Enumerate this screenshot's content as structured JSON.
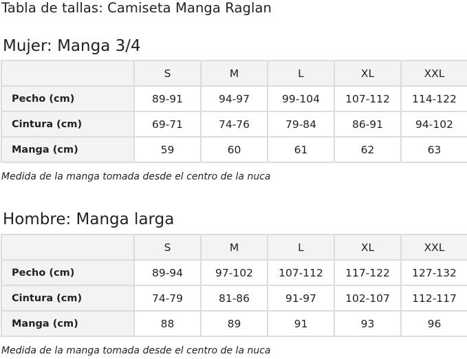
{
  "page_title": "Tabla de tallas: Camiseta Manga Raglan",
  "women": {
    "title": "Mujer: Manga 3/4",
    "sizes": [
      "S",
      "M",
      "L",
      "XL",
      "XXL"
    ],
    "rows": [
      {
        "label": "Pecho (cm)",
        "values": [
          "89-91",
          "94-97",
          "99-104",
          "107-112",
          "114-122"
        ]
      },
      {
        "label": "Cintura (cm)",
        "values": [
          "69-71",
          "74-76",
          "79-84",
          "86-91",
          "94-102"
        ]
      },
      {
        "label": "Manga (cm)",
        "values": [
          "59",
          "60",
          "61",
          "62",
          "63"
        ]
      }
    ],
    "note": "Medida de la manga tomada desde el centro de la nuca"
  },
  "men": {
    "title": "Hombre: Manga larga",
    "sizes": [
      "S",
      "M",
      "L",
      "XL",
      "XXL"
    ],
    "rows": [
      {
        "label": "Pecho (cm)",
        "values": [
          "89-94",
          "97-102",
          "107-112",
          "117-122",
          "127-132"
        ]
      },
      {
        "label": "Cintura (cm)",
        "values": [
          "74-79",
          "81-86",
          "91-97",
          "102-107",
          "112-117"
        ]
      },
      {
        "label": "Manga (cm)",
        "values": [
          "88",
          "89",
          "91",
          "93",
          "96"
        ]
      }
    ],
    "note": "Medida de la manga tomada desde el centro de la nuca"
  }
}
